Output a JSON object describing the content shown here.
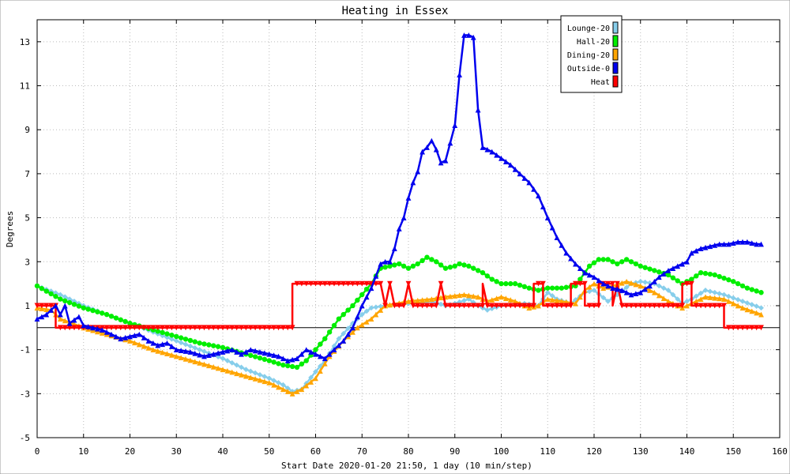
{
  "chart_data": {
    "type": "line",
    "title": "Heating in Essex",
    "xlabel": "Start Date 2020-01-20 21:50, 1 day (10 min/step)",
    "ylabel": "Degrees",
    "xlim": [
      0,
      160
    ],
    "ylim": [
      -5,
      14
    ],
    "xticks": [
      0,
      10,
      20,
      30,
      40,
      50,
      60,
      70,
      80,
      90,
      100,
      110,
      120,
      130,
      140,
      150,
      160
    ],
    "yticks": [
      -5,
      -3,
      -1,
      1,
      3,
      5,
      7,
      9,
      11,
      13
    ],
    "grid": true,
    "zero_line": true,
    "legend_position": "top-right",
    "series": [
      {
        "name": "Lounge-20",
        "color": "#87ceeb",
        "marker": "diamond",
        "points": [
          [
            0,
            1.9
          ],
          [
            5,
            1.5
          ],
          [
            10,
            1.0
          ],
          [
            15,
            0.6
          ],
          [
            20,
            0.2
          ],
          [
            25,
            -0.2
          ],
          [
            30,
            -0.6
          ],
          [
            35,
            -1.0
          ],
          [
            40,
            -1.4
          ],
          [
            45,
            -1.9
          ],
          [
            50,
            -2.3
          ],
          [
            53,
            -2.6
          ],
          [
            55,
            -2.9
          ],
          [
            57,
            -2.8
          ],
          [
            60,
            -2.0
          ],
          [
            62,
            -1.5
          ],
          [
            65,
            -0.5
          ],
          [
            68,
            0.2
          ],
          [
            70,
            0.6
          ],
          [
            72,
            0.9
          ],
          [
            75,
            1.0
          ],
          [
            80,
            1.1
          ],
          [
            85,
            1.2
          ],
          [
            88,
            1.0
          ],
          [
            90,
            1.1
          ],
          [
            93,
            1.3
          ],
          [
            95,
            1.0
          ],
          [
            97,
            0.8
          ],
          [
            100,
            1.0
          ],
          [
            105,
            1.1
          ],
          [
            108,
            1.0
          ],
          [
            110,
            1.6
          ],
          [
            112,
            1.3
          ],
          [
            115,
            1.1
          ],
          [
            118,
            1.6
          ],
          [
            120,
            1.7
          ],
          [
            123,
            1.2
          ],
          [
            125,
            1.5
          ],
          [
            128,
            2.0
          ],
          [
            130,
            2.1
          ],
          [
            133,
            2.0
          ],
          [
            136,
            1.7
          ],
          [
            139,
            1.1
          ],
          [
            141,
            1.3
          ],
          [
            144,
            1.7
          ],
          [
            148,
            1.5
          ],
          [
            152,
            1.2
          ],
          [
            156,
            0.9
          ]
        ]
      },
      {
        "name": "Hall-20",
        "color": "#00ee00",
        "marker": "circle",
        "points": [
          [
            0,
            1.9
          ],
          [
            5,
            1.3
          ],
          [
            10,
            0.9
          ],
          [
            15,
            0.6
          ],
          [
            20,
            0.2
          ],
          [
            25,
            -0.1
          ],
          [
            30,
            -0.4
          ],
          [
            35,
            -0.7
          ],
          [
            40,
            -0.9
          ],
          [
            45,
            -1.2
          ],
          [
            50,
            -1.5
          ],
          [
            53,
            -1.7
          ],
          [
            56,
            -1.8
          ],
          [
            58,
            -1.5
          ],
          [
            60,
            -1.0
          ],
          [
            62,
            -0.5
          ],
          [
            65,
            0.4
          ],
          [
            68,
            1.0
          ],
          [
            70,
            1.5
          ],
          [
            72,
            2.0
          ],
          [
            74,
            2.7
          ],
          [
            76,
            2.8
          ],
          [
            78,
            2.9
          ],
          [
            80,
            2.7
          ],
          [
            82,
            2.9
          ],
          [
            84,
            3.2
          ],
          [
            86,
            3.0
          ],
          [
            88,
            2.7
          ],
          [
            90,
            2.8
          ],
          [
            91,
            2.9
          ],
          [
            93,
            2.8
          ],
          [
            96,
            2.5
          ],
          [
            98,
            2.2
          ],
          [
            100,
            2.0
          ],
          [
            103,
            2.0
          ],
          [
            106,
            1.8
          ],
          [
            108,
            1.7
          ],
          [
            110,
            1.8
          ],
          [
            113,
            1.8
          ],
          [
            116,
            1.9
          ],
          [
            119,
            2.8
          ],
          [
            121,
            3.1
          ],
          [
            123,
            3.1
          ],
          [
            125,
            2.9
          ],
          [
            127,
            3.1
          ],
          [
            130,
            2.8
          ],
          [
            133,
            2.6
          ],
          [
            136,
            2.4
          ],
          [
            139,
            2.0
          ],
          [
            141,
            2.2
          ],
          [
            143,
            2.5
          ],
          [
            146,
            2.4
          ],
          [
            150,
            2.1
          ],
          [
            153,
            1.8
          ],
          [
            156,
            1.6
          ]
        ]
      },
      {
        "name": "Dining-20",
        "color": "#ffa500",
        "marker": "triangle",
        "points": [
          [
            0,
            0.9
          ],
          [
            3,
            0.8
          ],
          [
            5,
            0.4
          ],
          [
            10,
            0.0
          ],
          [
            15,
            -0.3
          ],
          [
            20,
            -0.6
          ],
          [
            25,
            -1.0
          ],
          [
            30,
            -1.3
          ],
          [
            35,
            -1.6
          ],
          [
            40,
            -1.9
          ],
          [
            45,
            -2.2
          ],
          [
            50,
            -2.5
          ],
          [
            55,
            -3.0
          ],
          [
            57,
            -2.8
          ],
          [
            60,
            -2.3
          ],
          [
            63,
            -1.3
          ],
          [
            66,
            -0.6
          ],
          [
            69,
            0.0
          ],
          [
            72,
            0.4
          ],
          [
            75,
            1.0
          ],
          [
            80,
            1.2
          ],
          [
            85,
            1.3
          ],
          [
            88,
            1.4
          ],
          [
            92,
            1.5
          ],
          [
            95,
            1.4
          ],
          [
            97,
            1.2
          ],
          [
            100,
            1.4
          ],
          [
            103,
            1.2
          ],
          [
            106,
            0.9
          ],
          [
            108,
            1.0
          ],
          [
            110,
            1.3
          ],
          [
            113,
            1.2
          ],
          [
            116,
            1.1
          ],
          [
            118,
            1.7
          ],
          [
            120,
            2.0
          ],
          [
            122,
            1.8
          ],
          [
            124,
            1.9
          ],
          [
            127,
            2.1
          ],
          [
            130,
            1.9
          ],
          [
            133,
            1.6
          ],
          [
            136,
            1.2
          ],
          [
            139,
            0.9
          ],
          [
            141,
            1.1
          ],
          [
            144,
            1.4
          ],
          [
            148,
            1.3
          ],
          [
            152,
            0.9
          ],
          [
            156,
            0.6
          ]
        ]
      },
      {
        "name": "Outside-0",
        "color": "#0000ee",
        "marker": "triangle",
        "points": [
          [
            0,
            0.4
          ],
          [
            2,
            0.6
          ],
          [
            4,
            1.0
          ],
          [
            5,
            0.6
          ],
          [
            6,
            1.0
          ],
          [
            7,
            0.2
          ],
          [
            9,
            0.5
          ],
          [
            10,
            0.1
          ],
          [
            12,
            0.0
          ],
          [
            14,
            -0.1
          ],
          [
            16,
            -0.3
          ],
          [
            18,
            -0.5
          ],
          [
            20,
            -0.4
          ],
          [
            22,
            -0.3
          ],
          [
            24,
            -0.6
          ],
          [
            26,
            -0.8
          ],
          [
            28,
            -0.7
          ],
          [
            30,
            -1.0
          ],
          [
            33,
            -1.1
          ],
          [
            36,
            -1.3
          ],
          [
            38,
            -1.2
          ],
          [
            40,
            -1.1
          ],
          [
            42,
            -1.0
          ],
          [
            44,
            -1.2
          ],
          [
            46,
            -1.0
          ],
          [
            48,
            -1.1
          ],
          [
            50,
            -1.2
          ],
          [
            52,
            -1.3
          ],
          [
            54,
            -1.5
          ],
          [
            56,
            -1.4
          ],
          [
            58,
            -1.0
          ],
          [
            60,
            -1.2
          ],
          [
            62,
            -1.4
          ],
          [
            64,
            -1.0
          ],
          [
            66,
            -0.6
          ],
          [
            68,
            0.0
          ],
          [
            70,
            1.0
          ],
          [
            72,
            1.8
          ],
          [
            74,
            2.9
          ],
          [
            75,
            3.0
          ],
          [
            76,
            3.0
          ],
          [
            77,
            3.6
          ],
          [
            78,
            4.5
          ],
          [
            79,
            5.0
          ],
          [
            80,
            5.9
          ],
          [
            81,
            6.6
          ],
          [
            82,
            7.1
          ],
          [
            83,
            8.0
          ],
          [
            84,
            8.2
          ],
          [
            85,
            8.5
          ],
          [
            86,
            8.1
          ],
          [
            87,
            7.5
          ],
          [
            88,
            7.6
          ],
          [
            89,
            8.4
          ],
          [
            90,
            9.2
          ],
          [
            91,
            11.5
          ],
          [
            92,
            13.3
          ],
          [
            93,
            13.3
          ],
          [
            94,
            13.2
          ],
          [
            95,
            9.9
          ],
          [
            96,
            8.2
          ],
          [
            98,
            8.0
          ],
          [
            100,
            7.7
          ],
          [
            102,
            7.4
          ],
          [
            104,
            7.0
          ],
          [
            106,
            6.6
          ],
          [
            108,
            6.0
          ],
          [
            110,
            5.0
          ],
          [
            112,
            4.1
          ],
          [
            114,
            3.4
          ],
          [
            116,
            2.9
          ],
          [
            118,
            2.5
          ],
          [
            120,
            2.3
          ],
          [
            122,
            2.0
          ],
          [
            124,
            1.8
          ],
          [
            126,
            1.7
          ],
          [
            128,
            1.5
          ],
          [
            130,
            1.6
          ],
          [
            132,
            1.9
          ],
          [
            134,
            2.3
          ],
          [
            136,
            2.6
          ],
          [
            138,
            2.8
          ],
          [
            140,
            3.0
          ],
          [
            141,
            3.4
          ],
          [
            143,
            3.6
          ],
          [
            145,
            3.7
          ],
          [
            147,
            3.8
          ],
          [
            149,
            3.8
          ],
          [
            151,
            3.9
          ],
          [
            153,
            3.9
          ],
          [
            155,
            3.8
          ],
          [
            156,
            3.8
          ]
        ]
      },
      {
        "name": "Heat",
        "color": "#ff0000",
        "marker": "triangle-down",
        "points": [
          [
            0,
            1.0
          ],
          [
            4,
            1.0
          ],
          [
            4,
            0.0
          ],
          [
            55,
            0.0
          ],
          [
            55,
            2.0
          ],
          [
            74,
            2.0
          ],
          [
            75,
            1.0
          ],
          [
            76,
            2.0
          ],
          [
            77,
            1.0
          ],
          [
            79,
            1.0
          ],
          [
            80,
            2.0
          ],
          [
            81,
            1.0
          ],
          [
            86,
            1.0
          ],
          [
            87,
            2.0
          ],
          [
            88,
            1.0
          ],
          [
            96,
            1.0
          ],
          [
            96,
            2.0
          ],
          [
            97,
            1.0
          ],
          [
            107,
            1.0
          ],
          [
            107,
            2.0
          ],
          [
            109,
            2.0
          ],
          [
            109,
            1.0
          ],
          [
            115,
            1.0
          ],
          [
            115,
            2.0
          ],
          [
            118,
            2.0
          ],
          [
            118,
            1.0
          ],
          [
            121,
            1.0
          ],
          [
            121,
            2.0
          ],
          [
            124,
            2.0
          ],
          [
            124,
            1.0
          ],
          [
            125,
            2.0
          ],
          [
            126,
            1.0
          ],
          [
            139,
            1.0
          ],
          [
            139,
            2.0
          ],
          [
            141,
            2.0
          ],
          [
            141,
            1.0
          ],
          [
            148,
            1.0
          ],
          [
            148,
            0.0
          ],
          [
            156,
            0.0
          ]
        ]
      }
    ]
  }
}
